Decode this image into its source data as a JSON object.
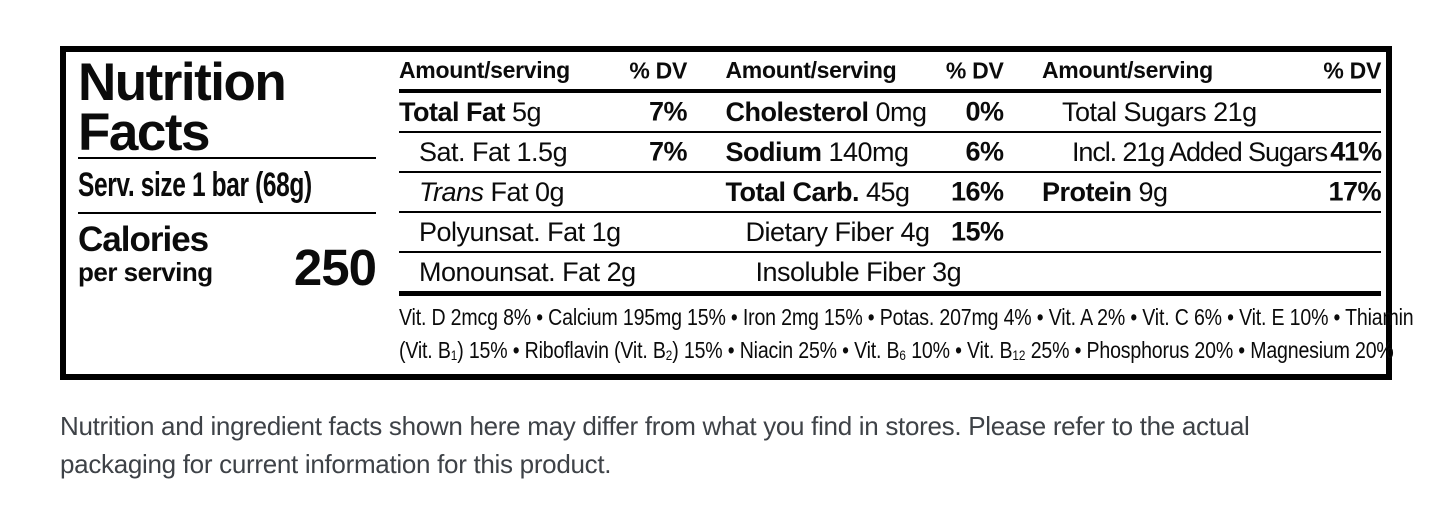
{
  "nutrition_label": {
    "title_line1": "Nutrition",
    "title_line2": "Facts",
    "serving_size": "Serv. size 1 bar (68g)",
    "calories": {
      "label": "Calories",
      "sublabel": "per serving",
      "value": "250"
    },
    "column_headers": {
      "amount": "Amount/serving",
      "dv": "% DV"
    },
    "columns": [
      {
        "rows": [
          {
            "lead": "Total Fat",
            "rest": " 5g",
            "dv": "7%"
          },
          {
            "lead": "",
            "rest": "Sat. Fat 1.5g",
            "dv": "7%"
          },
          {
            "lead": "Trans",
            "rest": " Fat 0g",
            "dv": ""
          },
          {
            "lead": "",
            "rest": "Polyunsat. Fat 1g",
            "dv": ""
          },
          {
            "lead": "",
            "rest": "Monounsat. Fat 2g",
            "dv": ""
          }
        ]
      },
      {
        "rows": [
          {
            "lead": "Cholesterol",
            "rest": " 0mg",
            "dv": "0%"
          },
          {
            "lead": "Sodium",
            "rest": " 140mg",
            "dv": "6%"
          },
          {
            "lead": "Total Carb.",
            "rest": " 45g",
            "dv": "16%"
          },
          {
            "lead": "",
            "rest": "Dietary Fiber 4g",
            "dv": "15%"
          },
          {
            "lead": "",
            "rest": "Insoluble Fiber 3g",
            "dv": ""
          }
        ]
      },
      {
        "rows": [
          {
            "lead": "",
            "rest": "Total Sugars 21g",
            "dv": ""
          },
          {
            "lead": "",
            "rest": "Incl. 21g Added Sugars",
            "dv": "41%"
          },
          {
            "lead": "Protein",
            "rest": " 9g",
            "dv": "17%"
          },
          {
            "lead": "",
            "rest": "",
            "dv": ""
          },
          {
            "lead": "",
            "rest": "",
            "dv": ""
          }
        ]
      }
    ],
    "micronutrients_line1": "Vit. D 2mcg 8% • Calcium 195mg 15% • Iron 2mg 15% • Potas. 207mg 4% • Vit. A 2% • Vit. C 6% • Vit. E 10% • Thiamin",
    "micronutrients_line2_parts": {
      "p0": "(Vit. B",
      "p1": "1",
      "p2": ") 15% • Riboflavin (Vit. B",
      "p3": "2",
      "p4": ") 15% • Niacin 25% • Vit. B",
      "p5": "6",
      "p6": " 10% • Vit. B",
      "p7": "12",
      "p8": " 25% • Phosphorus 20% • Magnesium 20%"
    },
    "colors": {
      "label_ink": "#000000",
      "disclaimer_text": "#3e4247"
    }
  },
  "disclaimer": {
    "line1": "Nutrition and ingredient facts shown here may differ from what you find in stores. Please refer to the actual",
    "line2": "packaging for current information for this product."
  }
}
